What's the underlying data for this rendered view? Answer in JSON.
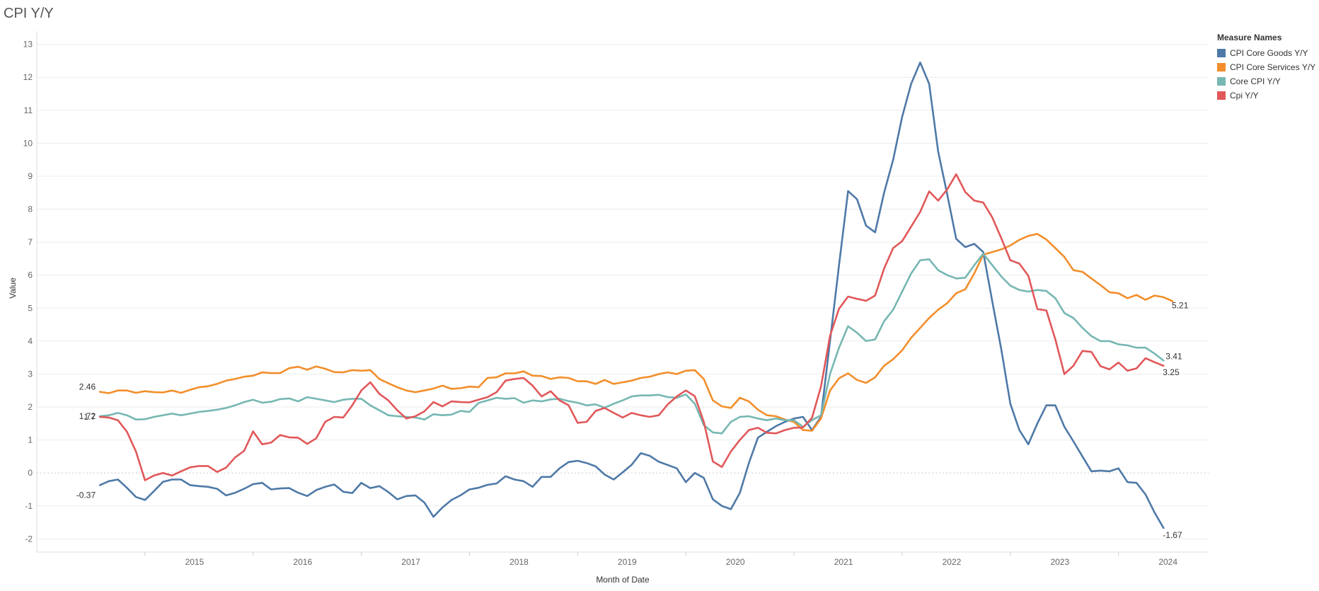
{
  "chart_data": {
    "type": "line",
    "title": "CPI Y/Y",
    "xlabel": "Month of Date",
    "ylabel": "Value",
    "x_start": "2014-08",
    "x_end": "2024-05",
    "xlim": [
      "2014-01",
      "2024-11"
    ],
    "ylim": [
      -2.4,
      13.4
    ],
    "x_ticks": [
      "2015",
      "2016",
      "2017",
      "2018",
      "2019",
      "2020",
      "2021",
      "2022",
      "2023",
      "2024"
    ],
    "y_ticks": [
      -2,
      -1,
      0,
      1,
      2,
      3,
      4,
      5,
      6,
      7,
      8,
      9,
      10,
      11,
      12,
      13
    ],
    "grid": true,
    "legend_position": "top-right",
    "legend_title": "Measure Names",
    "series": [
      {
        "name": "CPI Core Goods Y/Y",
        "color": "#4e79a7",
        "start_label": "-0.37",
        "end_label": "-1.67",
        "values": [
          -0.37,
          -0.25,
          -0.2,
          -0.45,
          -0.73,
          -0.82,
          -0.55,
          -0.27,
          -0.2,
          -0.2,
          -0.37,
          -0.4,
          -0.42,
          -0.48,
          -0.68,
          -0.6,
          -0.48,
          -0.34,
          -0.3,
          -0.5,
          -0.47,
          -0.46,
          -0.6,
          -0.7,
          -0.52,
          -0.42,
          -0.35,
          -0.57,
          -0.61,
          -0.3,
          -0.46,
          -0.4,
          -0.58,
          -0.8,
          -0.7,
          -0.68,
          -0.9,
          -1.33,
          -1.05,
          -0.82,
          -0.68,
          -0.5,
          -0.45,
          -0.36,
          -0.32,
          -0.1,
          -0.2,
          -0.25,
          -0.42,
          -0.12,
          -0.12,
          0.14,
          0.33,
          0.37,
          0.3,
          0.2,
          -0.05,
          -0.2,
          0.02,
          0.25,
          0.6,
          0.52,
          0.34,
          0.24,
          0.14,
          -0.28,
          0.0,
          -0.15,
          -0.8,
          -1.0,
          -1.1,
          -0.6,
          0.3,
          1.07,
          1.25,
          1.42,
          1.55,
          1.65,
          1.7,
          1.3,
          1.7,
          4.0,
          6.3,
          8.55,
          8.3,
          7.5,
          7.3,
          8.5,
          9.5,
          10.8,
          11.8,
          12.45,
          11.8,
          9.75,
          8.45,
          7.1,
          6.85,
          6.95,
          6.7,
          5.2,
          3.75,
          2.1,
          1.3,
          0.87,
          1.5,
          2.05,
          2.05,
          1.4,
          0.96,
          0.5,
          0.05,
          0.07,
          0.05,
          0.14,
          -0.28,
          -0.3,
          -0.65,
          -1.2,
          -1.67
        ]
      },
      {
        "name": "CPI Core Services Y/Y",
        "color": "#f28e2b",
        "start_label": "2.46",
        "end_label": "5.21",
        "values": [
          2.46,
          2.42,
          2.5,
          2.5,
          2.43,
          2.48,
          2.45,
          2.44,
          2.5,
          2.43,
          2.52,
          2.6,
          2.63,
          2.7,
          2.8,
          2.85,
          2.92,
          2.95,
          3.05,
          3.03,
          3.03,
          3.18,
          3.22,
          3.13,
          3.23,
          3.16,
          3.06,
          3.05,
          3.12,
          3.1,
          3.12,
          2.85,
          2.72,
          2.6,
          2.5,
          2.45,
          2.5,
          2.56,
          2.65,
          2.55,
          2.57,
          2.62,
          2.6,
          2.88,
          2.9,
          3.02,
          3.02,
          3.08,
          2.95,
          2.94,
          2.85,
          2.9,
          2.88,
          2.78,
          2.78,
          2.7,
          2.82,
          2.7,
          2.75,
          2.8,
          2.88,
          2.92,
          3.0,
          3.05,
          3.0,
          3.1,
          3.12,
          2.85,
          2.2,
          2.02,
          1.97,
          2.28,
          2.17,
          1.92,
          1.75,
          1.72,
          1.62,
          1.55,
          1.3,
          1.28,
          1.65,
          2.5,
          2.87,
          3.02,
          2.82,
          2.73,
          2.9,
          3.25,
          3.45,
          3.72,
          4.1,
          4.4,
          4.7,
          4.95,
          5.15,
          5.45,
          5.57,
          6.05,
          6.62,
          6.7,
          6.78,
          6.9,
          7.07,
          7.19,
          7.25,
          7.08,
          6.82,
          6.55,
          6.15,
          6.1,
          5.9,
          5.7,
          5.48,
          5.45,
          5.3,
          5.4,
          5.25,
          5.38,
          5.33,
          5.21
        ]
      },
      {
        "name": "Core CPI Y/Y",
        "color": "#76b7b2",
        "start_label": "1.72",
        "end_label": "3.41",
        "values": [
          1.72,
          1.75,
          1.82,
          1.75,
          1.62,
          1.63,
          1.7,
          1.75,
          1.8,
          1.75,
          1.8,
          1.85,
          1.88,
          1.92,
          1.97,
          2.05,
          2.15,
          2.22,
          2.13,
          2.16,
          2.24,
          2.26,
          2.17,
          2.3,
          2.25,
          2.2,
          2.15,
          2.22,
          2.25,
          2.25,
          2.05,
          1.9,
          1.75,
          1.72,
          1.7,
          1.68,
          1.62,
          1.78,
          1.75,
          1.77,
          1.88,
          1.85,
          2.12,
          2.2,
          2.28,
          2.25,
          2.27,
          2.13,
          2.2,
          2.17,
          2.23,
          2.25,
          2.18,
          2.13,
          2.05,
          2.08,
          1.98,
          2.1,
          2.2,
          2.32,
          2.35,
          2.35,
          2.37,
          2.3,
          2.28,
          2.38,
          2.1,
          1.45,
          1.23,
          1.2,
          1.55,
          1.7,
          1.72,
          1.65,
          1.6,
          1.65,
          1.6,
          1.6,
          1.4,
          1.6,
          1.75,
          3.0,
          3.8,
          4.45,
          4.25,
          4.0,
          4.05,
          4.6,
          4.95,
          5.5,
          6.05,
          6.45,
          6.48,
          6.15,
          6.0,
          5.9,
          5.92,
          6.3,
          6.65,
          6.3,
          5.96,
          5.68,
          5.55,
          5.5,
          5.55,
          5.52,
          5.3,
          4.85,
          4.7,
          4.4,
          4.15,
          4.0,
          4.0,
          3.9,
          3.87,
          3.8,
          3.8,
          3.62,
          3.41
        ]
      },
      {
        "name": "Cpi Y/Y",
        "color": "#e15759",
        "start_label": "1.7",
        "end_label": "3.25",
        "values": [
          1.7,
          1.68,
          1.6,
          1.25,
          0.65,
          -0.22,
          -0.08,
          0.0,
          -0.08,
          0.05,
          0.17,
          0.21,
          0.21,
          0.03,
          0.16,
          0.47,
          0.67,
          1.26,
          0.87,
          0.92,
          1.15,
          1.08,
          1.07,
          0.88,
          1.05,
          1.55,
          1.7,
          1.68,
          2.05,
          2.5,
          2.75,
          2.4,
          2.2,
          1.9,
          1.65,
          1.72,
          1.87,
          2.15,
          2.02,
          2.17,
          2.15,
          2.14,
          2.22,
          2.3,
          2.45,
          2.8,
          2.85,
          2.88,
          2.65,
          2.32,
          2.48,
          2.2,
          2.05,
          1.52,
          1.55,
          1.88,
          1.97,
          1.82,
          1.68,
          1.82,
          1.75,
          1.7,
          1.75,
          2.08,
          2.32,
          2.5,
          2.33,
          1.55,
          0.35,
          0.18,
          0.65,
          1.0,
          1.3,
          1.37,
          1.22,
          1.2,
          1.3,
          1.37,
          1.38,
          1.67,
          2.62,
          4.16,
          4.98,
          5.35,
          5.28,
          5.22,
          5.38,
          6.2,
          6.82,
          7.03,
          7.47,
          7.92,
          8.54,
          8.26,
          8.6,
          9.06,
          8.52,
          8.26,
          8.2,
          7.75,
          7.12,
          6.45,
          6.35,
          5.98,
          4.97,
          4.93,
          4.05,
          3.0,
          3.25,
          3.7,
          3.67,
          3.24,
          3.14,
          3.35,
          3.1,
          3.17,
          3.48,
          3.36,
          3.25
        ]
      }
    ]
  }
}
